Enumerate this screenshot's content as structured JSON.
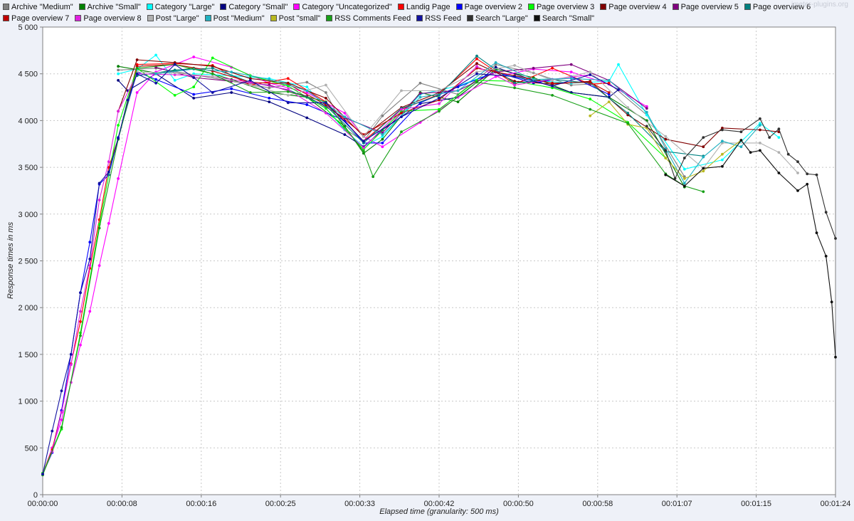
{
  "watermark": "jmeter-plugins.org",
  "chart_data": {
    "type": "line",
    "title": "",
    "xlabel": "Elapsed time (granularity: 500 ms)",
    "ylabel": "Response times in ms",
    "xlim_seconds": [
      0,
      84
    ],
    "ylim": [
      0,
      5000
    ],
    "grid": true,
    "legend_position": "top",
    "y_ticks": [
      {
        "value": 0,
        "label": "0"
      },
      {
        "value": 500,
        "label": "500"
      },
      {
        "value": 1000,
        "label": "1 000"
      },
      {
        "value": 1500,
        "label": "1 500"
      },
      {
        "value": 2000,
        "label": "2 000"
      },
      {
        "value": 2500,
        "label": "2 500"
      },
      {
        "value": 3000,
        "label": "3 000"
      },
      {
        "value": 3500,
        "label": "3 500"
      },
      {
        "value": 4000,
        "label": "4 000"
      },
      {
        "value": 4500,
        "label": "4 500"
      },
      {
        "value": 5000,
        "label": "5 000"
      }
    ],
    "x_ticks": [
      {
        "value": 0,
        "label": "00:00:00"
      },
      {
        "value": 8.4,
        "label": "00:00:08"
      },
      {
        "value": 16.8,
        "label": "00:00:16"
      },
      {
        "value": 25.2,
        "label": "00:00:25"
      },
      {
        "value": 33.6,
        "label": "00:00:33"
      },
      {
        "value": 42,
        "label": "00:00:42"
      },
      {
        "value": 50.4,
        "label": "00:00:50"
      },
      {
        "value": 58.8,
        "label": "00:00:58"
      },
      {
        "value": 67.2,
        "label": "00:01:07"
      },
      {
        "value": 75.6,
        "label": "00:01:15"
      },
      {
        "value": 84,
        "label": "00:01:24"
      }
    ],
    "series": [
      {
        "name": "Archive \"Medium\"",
        "color": "#808080",
        "x": [
          8,
          12,
          16,
          20,
          24,
          28,
          30,
          32,
          34,
          36,
          40,
          44,
          48,
          52,
          56,
          60,
          64,
          68
        ],
        "y": [
          4540,
          4560,
          4490,
          4420,
          4350,
          4410,
          4300,
          3910,
          3780,
          4050,
          4400,
          4280,
          4600,
          4510,
          4380,
          4400,
          4060,
          3400
        ]
      },
      {
        "name": "Archive \"Small\"",
        "color": "#008000",
        "x": [
          8,
          12,
          16,
          20,
          24,
          28,
          32,
          34,
          36,
          40,
          44,
          48,
          52,
          56,
          60,
          64,
          68
        ],
        "y": [
          4580,
          4510,
          4560,
          4440,
          4300,
          4250,
          3940,
          3650,
          3800,
          4300,
          4200,
          4550,
          4460,
          4300,
          4250,
          4000,
          3290
        ]
      },
      {
        "name": "Category \"Large\"",
        "color": "#00ffff",
        "x": [
          8,
          10,
          12,
          14,
          16,
          20,
          24,
          28,
          32,
          34,
          36,
          40,
          44,
          48,
          52,
          56,
          60,
          61,
          64,
          68,
          72,
          76,
          78
        ],
        "y": [
          4500,
          4550,
          4700,
          4430,
          4500,
          4480,
          4450,
          4360,
          3900,
          3720,
          3830,
          4280,
          4370,
          4520,
          4430,
          4400,
          4420,
          4600,
          4060,
          3480,
          3580,
          3970,
          3820
        ]
      },
      {
        "name": "Category \"Small\"",
        "color": "#000080",
        "x": [
          8,
          9,
          12,
          16,
          20,
          24,
          28,
          32,
          34,
          36,
          40,
          44,
          48,
          52,
          56,
          60,
          61
        ],
        "y": [
          4430,
          4320,
          4500,
          4240,
          4300,
          4200,
          4030,
          3850,
          3720,
          3900,
          4180,
          4250,
          4570,
          4430,
          4300,
          4250,
          4330
        ]
      },
      {
        "name": "Category \"Uncategorized\"",
        "color": "#ff00ff",
        "x": [
          0,
          1,
          2,
          3,
          4,
          5,
          6,
          7,
          8,
          10,
          12,
          16,
          20,
          24,
          28,
          32,
          34,
          36,
          40,
          44,
          48,
          52,
          56,
          60,
          64
        ],
        "y": [
          220,
          500,
          800,
          1200,
          1600,
          1960,
          2450,
          2900,
          3380,
          4300,
          4520,
          4680,
          4570,
          4400,
          4300,
          4080,
          3830,
          3720,
          3980,
          4250,
          4470,
          4550,
          4520,
          4390,
          4150
        ]
      },
      {
        "name": "Landig Page",
        "color": "#ff0000",
        "x": [
          0,
          1,
          2,
          3,
          4,
          5,
          6,
          7,
          8,
          10,
          14,
          18,
          22,
          26,
          30,
          34,
          38,
          42,
          46,
          50,
          54,
          58,
          60
        ],
        "y": [
          230,
          480,
          900,
          1400,
          1850,
          2420,
          2940,
          3500,
          3810,
          4600,
          4610,
          4590,
          4380,
          4450,
          4200,
          3780,
          4120,
          4280,
          4660,
          4390,
          4560,
          4390,
          4400
        ]
      },
      {
        "name": "Page overview 2",
        "color": "#0000ff",
        "x": [
          0,
          1,
          2,
          3,
          4,
          5,
          6,
          7,
          8,
          10,
          12,
          16,
          20,
          24,
          28,
          32,
          34,
          36,
          40,
          44,
          48,
          52,
          56,
          60
        ],
        "y": [
          220,
          450,
          900,
          1500,
          2160,
          2700,
          3320,
          3420,
          3820,
          4520,
          4440,
          4280,
          4340,
          4240,
          4170,
          4000,
          3760,
          3760,
          4190,
          4360,
          4520,
          4400,
          4470,
          4280
        ]
      },
      {
        "name": "Page overview 3",
        "color": "#00ff00",
        "x": [
          0,
          2,
          4,
          6,
          8,
          10,
          14,
          16,
          18,
          22,
          26,
          30,
          34,
          38,
          42,
          46,
          50,
          54,
          58,
          62,
          66
        ],
        "y": [
          230,
          700,
          1730,
          2890,
          3950,
          4560,
          4270,
          4360,
          4670,
          4480,
          4370,
          4130,
          3690,
          4100,
          4120,
          4430,
          4420,
          4350,
          4230,
          3980,
          3600
        ]
      },
      {
        "name": "Page overview 4",
        "color": "#800000",
        "x": [
          8,
          10,
          14,
          18,
          22,
          26,
          30,
          34,
          38,
          42,
          46,
          50,
          54,
          58,
          62,
          66,
          70,
          72,
          76,
          78
        ],
        "y": [
          4100,
          4650,
          4620,
          4580,
          4450,
          4400,
          4240,
          3830,
          4140,
          4300,
          4610,
          4420,
          4390,
          4420,
          4060,
          3800,
          3720,
          3920,
          3900,
          3880
        ]
      },
      {
        "name": "Page overview 5",
        "color": "#800080",
        "x": [
          12,
          16,
          20,
          24,
          28,
          32,
          36,
          40,
          44,
          48,
          52,
          56,
          60,
          64
        ],
        "y": [
          4570,
          4460,
          4420,
          4380,
          4260,
          4030,
          3870,
          4290,
          4320,
          4520,
          4560,
          4600,
          4430,
          4130
        ]
      },
      {
        "name": "Page overview 6",
        "color": "#008080",
        "x": [
          10,
          14,
          18,
          22,
          26,
          30,
          34,
          38,
          42,
          46,
          50,
          54,
          58,
          62,
          66,
          70
        ],
        "y": [
          4480,
          4540,
          4560,
          4410,
          4330,
          4160,
          3760,
          4130,
          4270,
          4690,
          4400,
          4440,
          4400,
          4080,
          3670,
          3620
        ]
      },
      {
        "name": "Page overview 7",
        "color": "#c00000",
        "x": [
          10,
          14,
          18,
          22,
          26,
          30,
          34,
          38,
          42,
          46,
          50,
          54,
          58,
          60
        ],
        "y": [
          4580,
          4600,
          4530,
          4410,
          4390,
          4170,
          3850,
          4080,
          4220,
          4560,
          4480,
          4400,
          4410,
          4300
        ]
      },
      {
        "name": "Page overview 8",
        "color": "#e020e0",
        "x": [
          0,
          1,
          2,
          3,
          4,
          5,
          6,
          7,
          8,
          10,
          14,
          18,
          22,
          26,
          30,
          34,
          38,
          42,
          46,
          50,
          54,
          58
        ],
        "y": [
          220,
          460,
          880,
          1390,
          1960,
          2450,
          3150,
          3560,
          4100,
          4500,
          4490,
          4470,
          4410,
          4330,
          4080,
          3710,
          4120,
          4180,
          4580,
          4380,
          4440,
          4490
        ]
      },
      {
        "name": "Post \"Large\"",
        "color": "#b0b0b0",
        "x": [
          10,
          14,
          18,
          22,
          26,
          30,
          34,
          38,
          42,
          46,
          50,
          54,
          58,
          62,
          66,
          70,
          72,
          76,
          78,
          80
        ],
        "y": [
          4520,
          4510,
          4470,
          4380,
          4270,
          4380,
          3830,
          4320,
          4320,
          4520,
          4590,
          4430,
          4520,
          4140,
          3830,
          3490,
          3760,
          3760,
          3660,
          3440
        ]
      },
      {
        "name": "Post \"Medium\"",
        "color": "#20b0c0",
        "x": [
          12,
          16,
          20,
          24,
          28,
          32,
          36,
          40,
          44,
          48,
          52,
          56,
          60,
          64,
          66,
          68,
          70,
          72,
          74,
          76
        ],
        "y": [
          4500,
          4550,
          4520,
          4440,
          4320,
          4040,
          3850,
          4250,
          4320,
          4620,
          4440,
          4450,
          4430,
          4090,
          3700,
          3330,
          3610,
          3780,
          3720,
          3950
        ]
      },
      {
        "name": "Post \"small\"",
        "color": "#b8b820",
        "x": [
          58,
          60,
          62,
          64,
          66,
          68,
          70,
          72,
          74
        ],
        "y": [
          4050,
          4200,
          3960,
          3920,
          3600,
          3380,
          3460,
          3640,
          3790
        ]
      },
      {
        "name": "RSS Comments Feed",
        "color": "#18a018",
        "x": [
          0,
          2,
          4,
          6,
          8,
          10,
          14,
          18,
          22,
          26,
          30,
          34,
          35,
          38,
          42,
          46,
          50,
          54,
          58,
          62,
          66,
          68,
          70
        ],
        "y": [
          210,
          720,
          1700,
          2850,
          3800,
          4560,
          4600,
          4500,
          4300,
          4310,
          4200,
          3670,
          3400,
          3880,
          4100,
          4410,
          4350,
          4270,
          4120,
          3970,
          3430,
          3300,
          3240
        ]
      },
      {
        "name": "RSS Feed",
        "color": "#1010a0",
        "x": [
          0,
          1,
          2,
          3,
          4,
          5,
          6,
          7,
          8,
          9,
          10,
          12,
          14,
          16,
          18,
          22,
          26,
          30,
          34,
          38,
          42,
          46,
          50,
          54,
          58,
          61
        ],
        "y": [
          220,
          680,
          1110,
          1500,
          2160,
          2520,
          3330,
          3450,
          3810,
          4220,
          4500,
          4400,
          4600,
          4460,
          4300,
          4430,
          4190,
          4190,
          3780,
          4040,
          4240,
          4500,
          4470,
          4370,
          4490,
          4330
        ]
      },
      {
        "name": "Search \"Large\"",
        "color": "#303030",
        "x": [
          64,
          66,
          67,
          68,
          70,
          72,
          74,
          76,
          77,
          78,
          79,
          80,
          81,
          82,
          83,
          84
        ],
        "y": [
          3940,
          3680,
          3380,
          3600,
          3820,
          3900,
          3880,
          4020,
          3820,
          3910,
          3640,
          3560,
          3430,
          3420,
          3020,
          2740
        ]
      },
      {
        "name": "Search \"Small\"",
        "color": "#101010",
        "x": [
          66,
          68,
          70,
          72,
          74,
          75,
          76,
          78,
          80,
          81,
          82,
          83,
          83.6,
          84
        ],
        "y": [
          3420,
          3300,
          3490,
          3510,
          3790,
          3660,
          3680,
          3440,
          3250,
          3320,
          2800,
          2550,
          2060,
          1470
        ]
      }
    ]
  }
}
